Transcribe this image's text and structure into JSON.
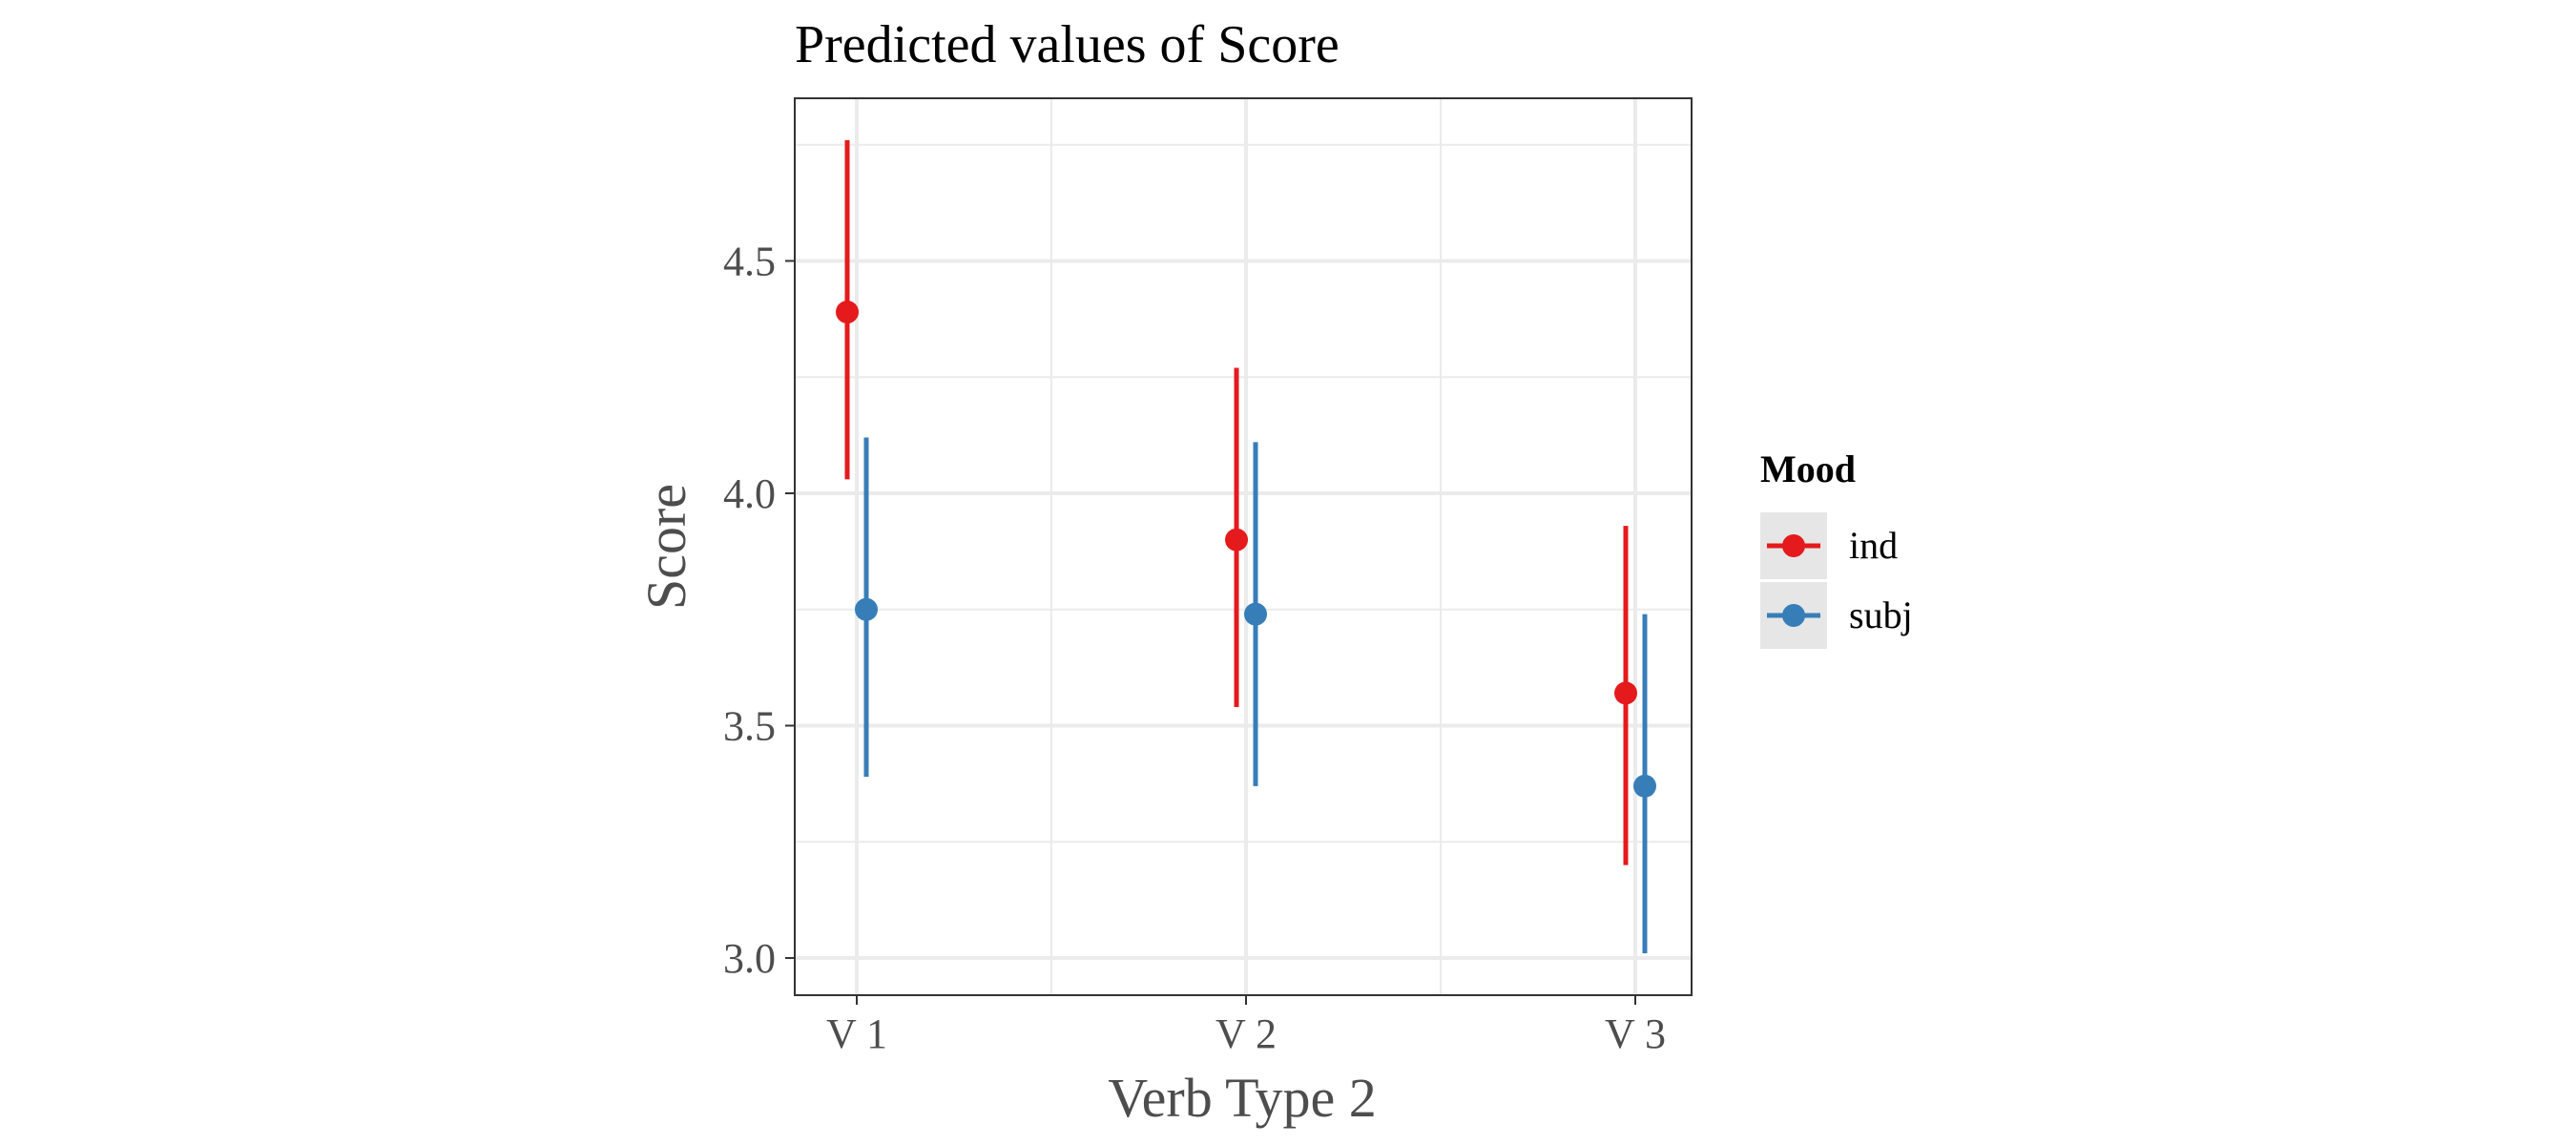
{
  "chart_data": {
    "type": "scatter",
    "title": "Predicted values of Score",
    "xlabel": "Verb Type 2",
    "ylabel": "Score",
    "categories": [
      "V 1",
      "V 2",
      "V 3"
    ],
    "ylim": [
      2.92,
      4.85
    ],
    "yticks": [
      3.0,
      3.5,
      4.0,
      4.5
    ],
    "ytick_labels": [
      "3.0",
      "3.5",
      "4.0",
      "4.5"
    ],
    "grid": true,
    "legend": {
      "title": "Mood",
      "position": "right"
    },
    "series": [
      {
        "name": "ind",
        "color": "#e41a1c",
        "values": [
          4.39,
          3.9,
          3.57
        ],
        "lower": [
          4.03,
          3.54,
          3.2
        ],
        "upper": [
          4.76,
          4.27,
          3.93
        ]
      },
      {
        "name": "subj",
        "color": "#377eb8",
        "values": [
          3.75,
          3.74,
          3.37
        ],
        "lower": [
          3.39,
          3.37,
          3.01
        ],
        "upper": [
          4.12,
          4.11,
          3.74
        ]
      }
    ]
  }
}
